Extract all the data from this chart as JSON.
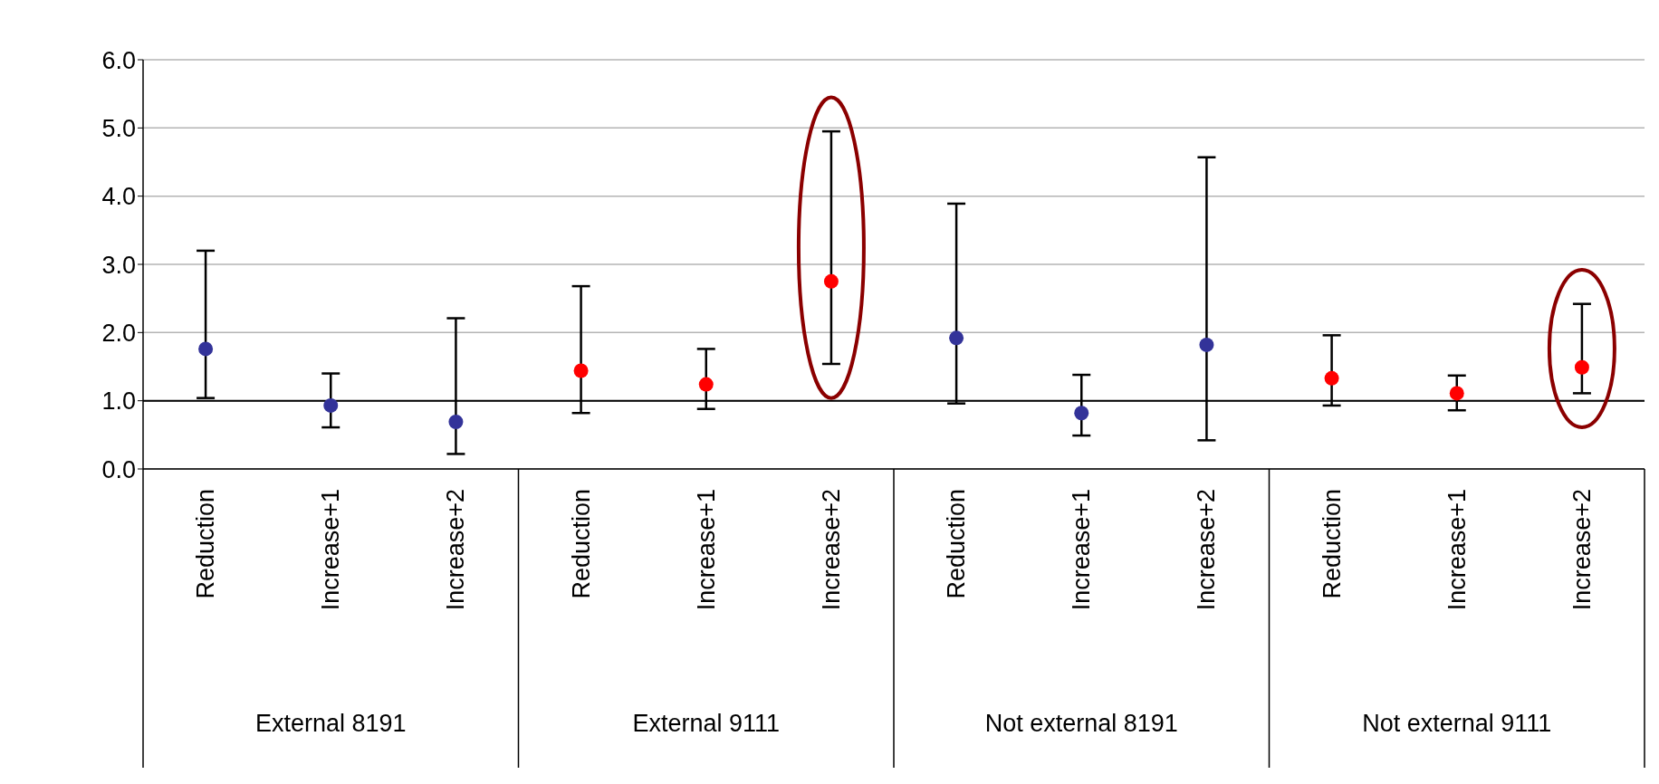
{
  "chart_data": {
    "type": "scatter",
    "categories": [
      "Reduction",
      "Increase+1",
      "Increase+2",
      "Reduction",
      "Increase+1",
      "Increase+2",
      "Reduction",
      "Increase+1",
      "Increase+2",
      "Reduction",
      "Increase+1",
      "Increase+2"
    ],
    "series": [
      {
        "color": "#333399",
        "values": [
          1.76,
          0.93,
          0.69,
          null,
          null,
          null,
          1.92,
          0.82,
          1.82,
          null,
          null,
          null
        ],
        "errors": [
          [
            1.04,
            3.2
          ],
          [
            0.61,
            1.4
          ],
          [
            0.22,
            2.21
          ],
          null,
          null,
          null,
          [
            0.96,
            3.89
          ],
          [
            0.49,
            1.38
          ],
          [
            0.42,
            4.57
          ],
          null,
          null,
          null
        ]
      },
      {
        "color": "#ff0000",
        "values": [
          null,
          null,
          null,
          1.44,
          1.24,
          2.75,
          null,
          null,
          null,
          1.33,
          1.11,
          1.49
        ],
        "errors": [
          null,
          null,
          null,
          [
            0.82,
            2.68
          ],
          [
            0.88,
            1.76
          ],
          [
            1.54,
            4.95
          ],
          null,
          null,
          null,
          [
            0.93,
            1.96
          ],
          [
            0.86,
            1.37
          ],
          [
            1.11,
            2.42
          ]
        ]
      }
    ],
    "annotations": [
      "External 8191",
      "External 9111",
      "Not external 8191",
      "Not external 9111"
    ],
    "ylim": [
      0,
      6
    ],
    "yticks": [
      {
        "value": 0,
        "label": "0.0"
      },
      {
        "value": 1,
        "label": "1.0"
      },
      {
        "value": 2,
        "label": "2.0"
      },
      {
        "value": 3,
        "label": "3.0"
      },
      {
        "value": 4,
        "label": "4.0"
      },
      {
        "value": 5,
        "label": "5.0"
      },
      {
        "value": 6,
        "label": "6.0"
      }
    ],
    "grid": "y",
    "marker": "circle",
    "ref_lines": [
      {
        "axis": "y",
        "value": 1,
        "color": "#000000"
      }
    ]
  }
}
